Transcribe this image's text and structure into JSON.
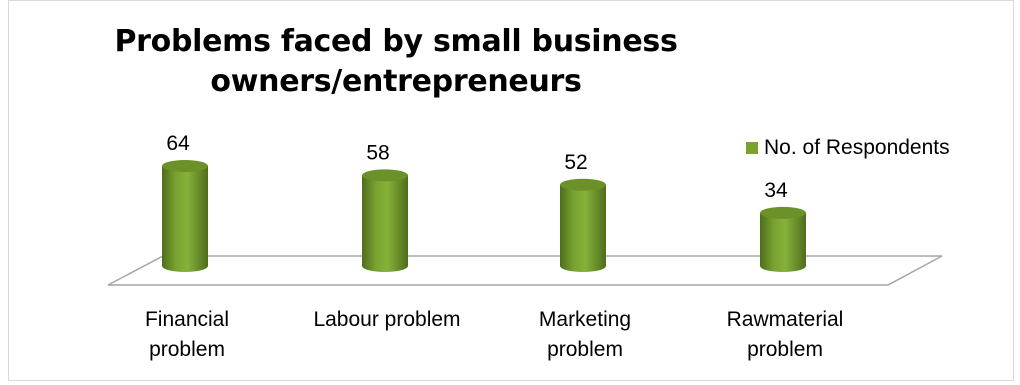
{
  "chart_data": {
    "type": "bar",
    "title": "Problems faced by small business owners/entrepreneurs",
    "categories": [
      "Financial\nproblem",
      "Labour problem",
      "Marketing\nproblem",
      "Rawmaterial\nproblem"
    ],
    "series": [
      {
        "name": "No. of Respondents",
        "values": [
          64,
          58,
          52,
          34
        ]
      }
    ],
    "data_labels": [
      "64",
      "58",
      "52",
      "34"
    ],
    "ylim": [
      0,
      64
    ],
    "grid": false,
    "legend_position": "right",
    "colors": {
      "bar": "#78a22f",
      "bar_dark": "#4f6d1c",
      "bar_top": "#6b9128",
      "floor_line": "#a6a6a6",
      "frame": "#d9d9d9"
    }
  }
}
